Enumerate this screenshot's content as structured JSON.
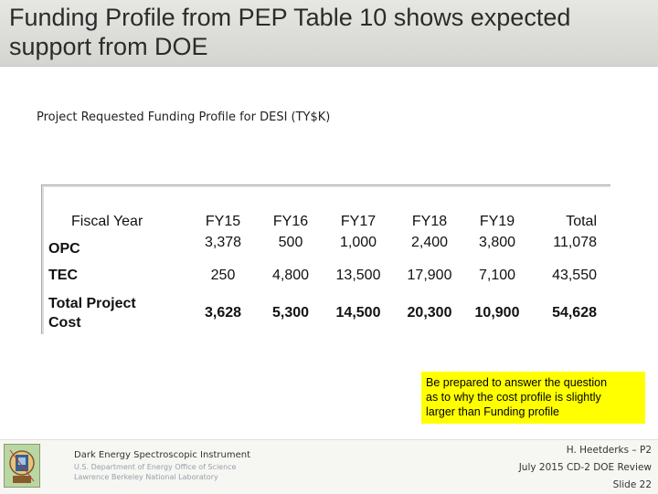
{
  "slide": {
    "title": "Funding Profile from PEP Table 10 shows expected support from DOE",
    "subtitle": "Project Requested Funding Profile for DESI (TY$K)"
  },
  "table": {
    "header": {
      "label": "Fiscal Year",
      "columns": [
        "FY15",
        "FY16",
        "FY17",
        "FY18",
        "FY19",
        "Total"
      ]
    },
    "rows": [
      {
        "label": "OPC",
        "values": [
          "3,378",
          "500",
          "1,000",
          "2,400",
          "3,800",
          "11,078"
        ]
      },
      {
        "label": "TEC",
        "values": [
          "250",
          "4,800",
          "13,500",
          "17,900",
          "7,100",
          "43,550"
        ]
      },
      {
        "label_line1": "Total Project",
        "label_line2": "Cost",
        "values": [
          "3,628",
          "5,300",
          "14,500",
          "20,300",
          "10,900",
          "54,628"
        ]
      }
    ]
  },
  "note": {
    "line1": "Be prepared to answer the question",
    "line2": "as to why the cost profile is slightly",
    "line3": "larger than Funding profile"
  },
  "footer": {
    "org_name": "Dark Energy Spectroscopic Instrument",
    "org_line1": "U.S. Department of Energy Office of Science",
    "org_line2": "Lawrence Berkeley National Laboratory",
    "presenter": "H. Heetderks – P2",
    "review": "July 2015 CD-2 DOE Review",
    "slide_number": "Slide 22"
  },
  "colors": {
    "title_bar": "#dcdcd8",
    "note_background": "#ffff00",
    "footer_band": "#f6f6f3"
  }
}
